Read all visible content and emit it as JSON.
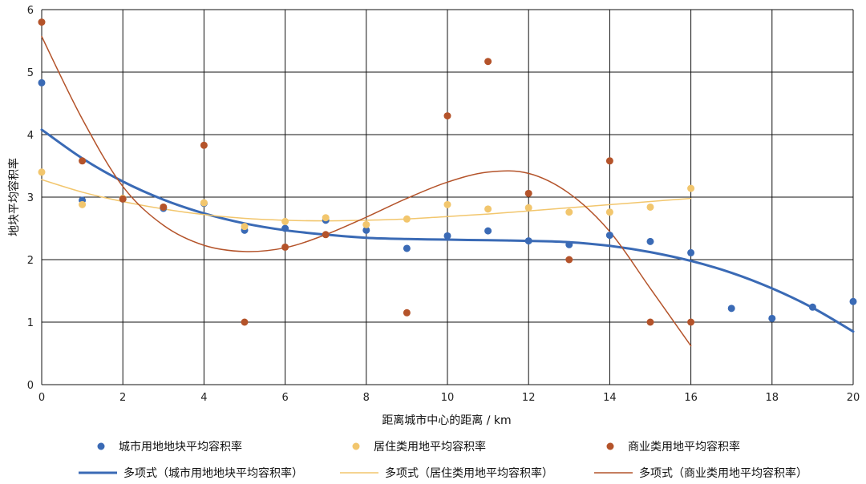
{
  "chart_data": {
    "type": "scatter",
    "xlabel": "距离城市中心的距离 / km",
    "ylabel": "地块平均容积率",
    "xlim": [
      0,
      20
    ],
    "ylim": [
      0,
      6
    ],
    "x_ticks": [
      "0",
      "2",
      "4",
      "6",
      "8",
      "10",
      "12",
      "14",
      "16",
      "18",
      "20"
    ],
    "y_ticks": [
      "0",
      "1",
      "2",
      "3",
      "4",
      "5",
      "6"
    ],
    "grid": true,
    "legend_position": "bottom",
    "series": [
      {
        "name": "城市用地地块平均容积率",
        "color": "#3a6ab5",
        "points": [
          [
            0,
            4.83
          ],
          [
            1,
            2.95
          ],
          [
            2,
            2.97
          ],
          [
            3,
            2.82
          ],
          [
            4,
            2.9
          ],
          [
            5,
            2.47
          ],
          [
            6,
            2.5
          ],
          [
            7,
            2.63
          ],
          [
            8,
            2.47
          ],
          [
            9,
            2.18
          ],
          [
            10,
            2.38
          ],
          [
            11,
            2.46
          ],
          [
            12,
            2.3
          ],
          [
            13,
            2.24
          ],
          [
            14,
            2.39
          ],
          [
            15,
            2.29
          ],
          [
            16,
            2.11
          ],
          [
            17,
            1.22
          ],
          [
            18,
            1.06
          ],
          [
            19,
            1.24
          ],
          [
            20,
            1.33
          ]
        ]
      },
      {
        "name": "居住类用地平均容积率",
        "color": "#f2c66d",
        "points": [
          [
            0,
            3.4
          ],
          [
            1,
            2.88
          ],
          [
            2,
            2.98
          ],
          [
            3,
            2.84
          ],
          [
            4,
            2.91
          ],
          [
            5,
            2.53
          ],
          [
            6,
            2.61
          ],
          [
            7,
            2.67
          ],
          [
            8,
            2.56
          ],
          [
            9,
            2.65
          ],
          [
            10,
            2.88
          ],
          [
            11,
            2.81
          ],
          [
            12,
            2.83
          ],
          [
            13,
            2.76
          ],
          [
            14,
            2.76
          ],
          [
            15,
            2.84
          ],
          [
            16,
            3.14
          ]
        ]
      },
      {
        "name": "商业类用地平均容积率",
        "color": "#b4532a",
        "points": [
          [
            0,
            5.8
          ],
          [
            1,
            3.58
          ],
          [
            2,
            2.97
          ],
          [
            3,
            2.84
          ],
          [
            4,
            3.83
          ],
          [
            5,
            1.0
          ],
          [
            6,
            2.2
          ],
          [
            7,
            2.4
          ],
          [
            9,
            1.15
          ],
          [
            10,
            4.3
          ],
          [
            11,
            5.17
          ],
          [
            12,
            3.06
          ],
          [
            13,
            2.0
          ],
          [
            14,
            3.58
          ],
          [
            15,
            1.0
          ],
          [
            16,
            1.0
          ]
        ]
      }
    ],
    "trendlines": [
      {
        "name": "多项式（城市用地地块平均容积率）",
        "color": "#3a6ab5",
        "width": 3,
        "points": [
          [
            0,
            4.08
          ],
          [
            1,
            3.62
          ],
          [
            2,
            3.25
          ],
          [
            3,
            2.96
          ],
          [
            4,
            2.74
          ],
          [
            5,
            2.58
          ],
          [
            6,
            2.47
          ],
          [
            7,
            2.4
          ],
          [
            8,
            2.35
          ],
          [
            9,
            2.33
          ],
          [
            10,
            2.32
          ],
          [
            11,
            2.31
          ],
          [
            12,
            2.3
          ],
          [
            13,
            2.28
          ],
          [
            14,
            2.22
          ],
          [
            15,
            2.12
          ],
          [
            16,
            1.98
          ],
          [
            17,
            1.79
          ],
          [
            18,
            1.54
          ],
          [
            19,
            1.23
          ],
          [
            20,
            0.85
          ]
        ]
      },
      {
        "name": "多项式（居住类用地平均容积率）",
        "color": "#f2c66d",
        "width": 1.5,
        "points": [
          [
            0,
            3.28
          ],
          [
            1,
            3.08
          ],
          [
            2,
            2.93
          ],
          [
            3,
            2.81
          ],
          [
            4,
            2.72
          ],
          [
            5,
            2.66
          ],
          [
            6,
            2.63
          ],
          [
            7,
            2.62
          ],
          [
            8,
            2.63
          ],
          [
            9,
            2.65
          ],
          [
            10,
            2.69
          ],
          [
            11,
            2.73
          ],
          [
            12,
            2.78
          ],
          [
            13,
            2.83
          ],
          [
            14,
            2.88
          ],
          [
            15,
            2.93
          ],
          [
            16,
            2.98
          ]
        ]
      },
      {
        "name": "多项式（商业类用地平均容积率）",
        "color": "#b4532a",
        "width": 1.5,
        "points": [
          [
            0,
            5.57
          ],
          [
            1,
            4.25
          ],
          [
            2,
            3.17
          ],
          [
            3,
            2.55
          ],
          [
            4,
            2.23
          ],
          [
            5,
            2.13
          ],
          [
            6,
            2.19
          ],
          [
            7,
            2.4
          ],
          [
            8,
            2.68
          ],
          [
            9,
            2.98
          ],
          [
            10,
            3.24
          ],
          [
            11,
            3.4
          ],
          [
            12,
            3.38
          ],
          [
            13,
            3.06
          ],
          [
            14,
            2.45
          ],
          [
            15,
            1.54
          ],
          [
            16,
            0.62
          ]
        ]
      }
    ],
    "legend": {
      "row1": [
        "城市用地地块平均容积率",
        "居住类用地平均容积率",
        "商业类用地平均容积率"
      ],
      "row2": [
        "多项式（城市用地地块平均容积率）",
        "多项式（居住类用地平均容积率）",
        "多项式（商业类用地平均容积率）"
      ]
    }
  }
}
